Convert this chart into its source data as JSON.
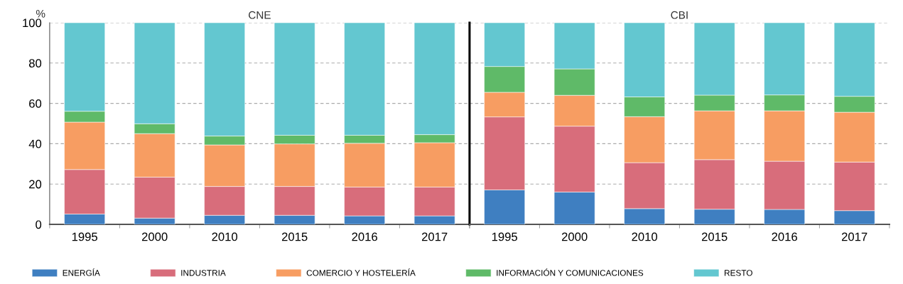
{
  "chart_data": [
    {
      "type": "bar",
      "title": "CNE",
      "ylabel": "%",
      "stacked": true,
      "categories": [
        "1995",
        "2000",
        "2010",
        "2015",
        "2016",
        "2017"
      ],
      "ylim": [
        0,
        100
      ],
      "yticks": [
        0,
        20,
        40,
        60,
        80,
        100
      ],
      "grid": "y",
      "legend": "bottom",
      "series": [
        {
          "name": "ENERGÍA",
          "color": "#3f7fc1",
          "values": [
            5.1,
            3.1,
            4.5,
            4.5,
            4.2,
            4.2
          ]
        },
        {
          "name": "INDUSTRIA",
          "color": "#d86d7b",
          "values": [
            22.1,
            20.3,
            14.3,
            14.3,
            14.3,
            14.3
          ]
        },
        {
          "name": "COMERCIO Y HOSTELERÍA",
          "color": "#f79d62",
          "values": [
            23.5,
            21.6,
            20.6,
            21.1,
            21.7,
            22.0
          ]
        },
        {
          "name": "INFORMACIÓN Y COMUNICACIONES",
          "color": "#5fba68",
          "values": [
            5.4,
            4.9,
            4.4,
            4.3,
            4.0,
            4.0
          ]
        },
        {
          "name": "RESTO",
          "color": "#63c7d0",
          "values": [
            43.9,
            50.1,
            56.2,
            55.8,
            55.8,
            55.5
          ]
        }
      ]
    },
    {
      "type": "bar",
      "title": "CBI",
      "stacked": true,
      "categories": [
        "1995",
        "2000",
        "2010",
        "2015",
        "2016",
        "2017"
      ],
      "ylim": [
        0,
        100
      ],
      "yticks": [
        0,
        20,
        40,
        60,
        80,
        100
      ],
      "grid": "y",
      "tick_labels": "x",
      "series": [
        {
          "color": "#3f7fc1",
          "values": [
            17.1,
            16.0,
            7.8,
            7.5,
            7.4,
            6.8
          ]
        },
        {
          "color": "#d86d7b",
          "values": [
            36.2,
            32.7,
            22.8,
            24.6,
            23.9,
            24.1
          ]
        },
        {
          "color": "#f79d62",
          "values": [
            12.2,
            15.3,
            22.8,
            24.2,
            25.0,
            24.7
          ]
        },
        {
          "color": "#5fba68",
          "values": [
            12.8,
            13.1,
            9.8,
            7.8,
            7.9,
            7.9
          ]
        },
        {
          "color": "#63c7d0",
          "values": [
            21.7,
            22.9,
            36.8,
            35.9,
            35.8,
            36.5
          ]
        }
      ]
    }
  ]
}
